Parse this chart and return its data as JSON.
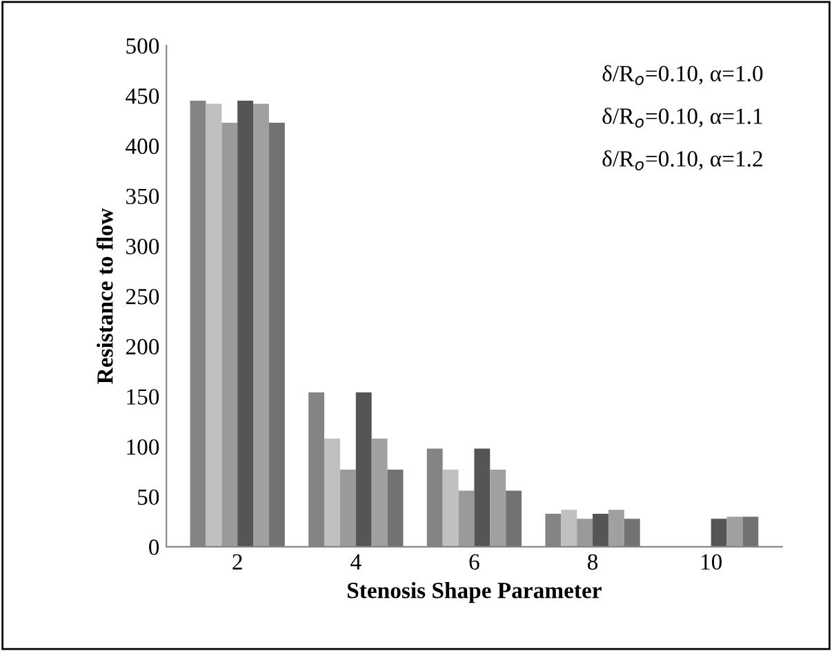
{
  "chart_data": {
    "type": "bar",
    "xlabel": "Stenosis Shape Parameter",
    "ylabel": "Resistance to flow",
    "categories": [
      "2",
      "4",
      "6",
      "8",
      "10"
    ],
    "series": [
      {
        "color": "#848484",
        "values": [
          445,
          154,
          98,
          33,
          null
        ]
      },
      {
        "color": "#c0c0c0",
        "values": [
          442,
          108,
          77,
          37,
          null
        ]
      },
      {
        "color": "#9a9a9a",
        "values": [
          423,
          77,
          56,
          28,
          null
        ]
      },
      {
        "color": "#555555",
        "values": [
          445,
          154,
          98,
          33,
          28
        ]
      },
      {
        "color": "#a0a0a0",
        "values": [
          442,
          108,
          77,
          37,
          30
        ]
      },
      {
        "color": "#727272",
        "values": [
          423,
          77,
          56,
          28,
          30
        ]
      }
    ],
    "annotations": [
      "δ/R$_{o}$=0.10, α=1.0",
      "δ/R$_{o}$=0.10, α=1.1",
      "δ/R$_{o}$=0.10, α=1.2"
    ],
    "ylim": [
      0,
      500
    ],
    "yticks": [
      0,
      50,
      100,
      150,
      200,
      250,
      300,
      350,
      400,
      450,
      500
    ],
    "grid": false,
    "legend": false
  }
}
